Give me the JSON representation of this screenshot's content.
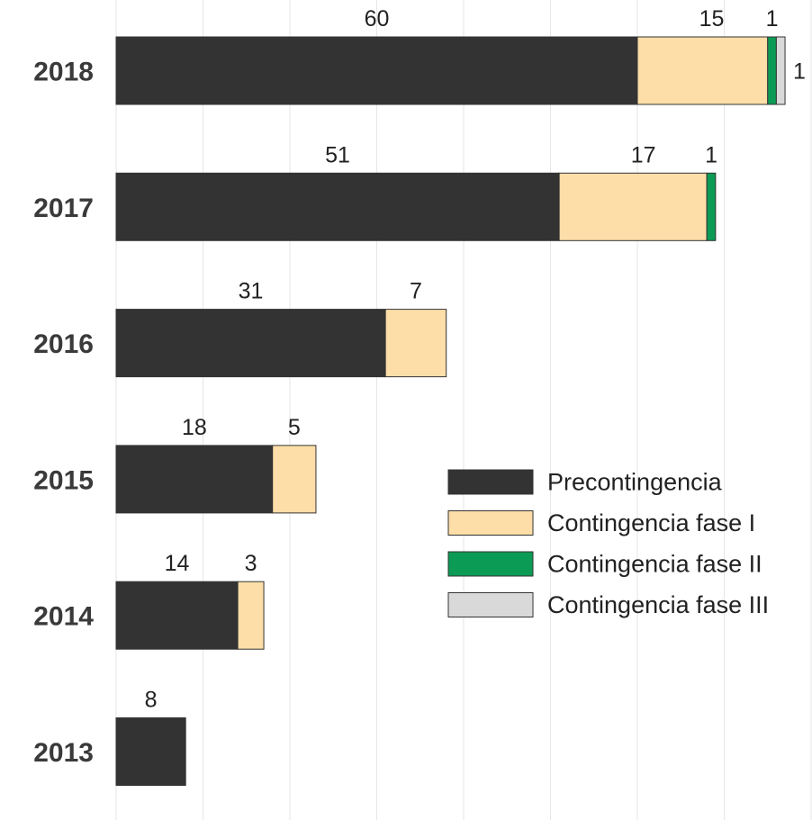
{
  "chart_data": {
    "type": "bar",
    "orientation": "horizontal",
    "stacked": true,
    "title": "",
    "xlabel": "",
    "ylabel": "",
    "xlim": [
      0,
      80
    ],
    "grid": true,
    "legend_position": "right",
    "categories": [
      "2018",
      "2017",
      "2016",
      "2015",
      "2014",
      "2013"
    ],
    "series": [
      {
        "name": "Precontingencia",
        "color": "#333333",
        "values": [
          60,
          51,
          31,
          18,
          14,
          8
        ]
      },
      {
        "name": "Contingencia fase I",
        "color": "#fddea8",
        "values": [
          15,
          17,
          7,
          5,
          3,
          0
        ]
      },
      {
        "name": "Contingencia fase II",
        "color": "#0c9b55",
        "values": [
          1,
          1,
          0,
          0,
          0,
          0
        ]
      },
      {
        "name": "Contingencia fase III",
        "color": "#d9d9d9",
        "values": [
          1,
          0,
          0,
          0,
          0,
          0
        ]
      }
    ]
  }
}
